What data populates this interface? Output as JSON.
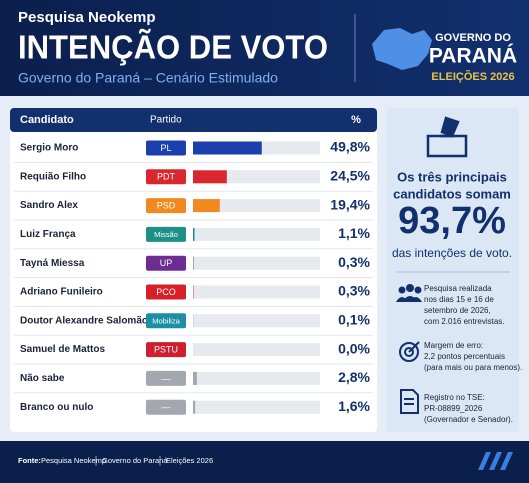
{
  "header": {
    "kicker": "Pesquisa Neokemp",
    "title": "INTENÇÃO DE VOTO",
    "subtitle": "Governo do Paraná – Cenário Estimulado",
    "badge_top": "GOVERNO DO",
    "badge_main": "PARANÁ",
    "badge_bottom": "ELEIÇÕES 2026"
  },
  "chart_data": {
    "type": "bar",
    "orientation": "horizontal",
    "column_headers": [
      "Candidato",
      "Partido",
      "%"
    ],
    "categories": [
      "Sergio Moro",
      "Requião Filho",
      "Sandro Alex",
      "Luiz França",
      "Tayná Miessa",
      "Adriano Funileiro",
      "Doutor Alexandre Salomão",
      "Samuel de Mattos",
      "Não sabe",
      "Branco ou nulo"
    ],
    "parties": [
      "PL",
      "PDT",
      "PSD",
      "Missão",
      "UP",
      "PCO",
      "Mobiliza",
      "PSTU",
      "—",
      "—"
    ],
    "colors": [
      "#1b3fae",
      "#d9262f",
      "#f0891e",
      "#1e9088",
      "#6b2d92",
      "#d61f27",
      "#1d8fa3",
      "#cf1f2e",
      "#a3a8b0",
      "#a3a8b0"
    ],
    "values": [
      49.8,
      24.5,
      19.4,
      1.1,
      0.3,
      0.3,
      0.1,
      0.0,
      2.8,
      1.6
    ],
    "value_labels": [
      "49,8%",
      "24,5%",
      "19,4%",
      "1,1%",
      "0,3%",
      "0,3%",
      "0,1%",
      "0,0%",
      "2,8%",
      "1,6%"
    ],
    "xlim": [
      0,
      92
    ]
  },
  "summary": {
    "lines": [
      "Os três principais",
      "candidatos somam"
    ],
    "total": "93,7%",
    "caption": "das intenções de voto."
  },
  "notes": [
    {
      "lines": [
        "Pesquisa realizada",
        "nos dias 15 e 16 de",
        "setembro de 2026,",
        "com 2.016 entrevistas."
      ]
    },
    {
      "lines": [
        "Margem de erro:",
        "2,2 pontos percentuais",
        "(para mais ou para menos)."
      ]
    },
    {
      "lines": [
        "Registro no TSE:",
        "PR-08899_2026",
        "(Governador e Senador)."
      ]
    }
  ],
  "footer": {
    "label": "Fonte:",
    "items": [
      "Pesquisa Neokemp",
      "Governo do Paraná",
      "Eleições 2026"
    ]
  }
}
